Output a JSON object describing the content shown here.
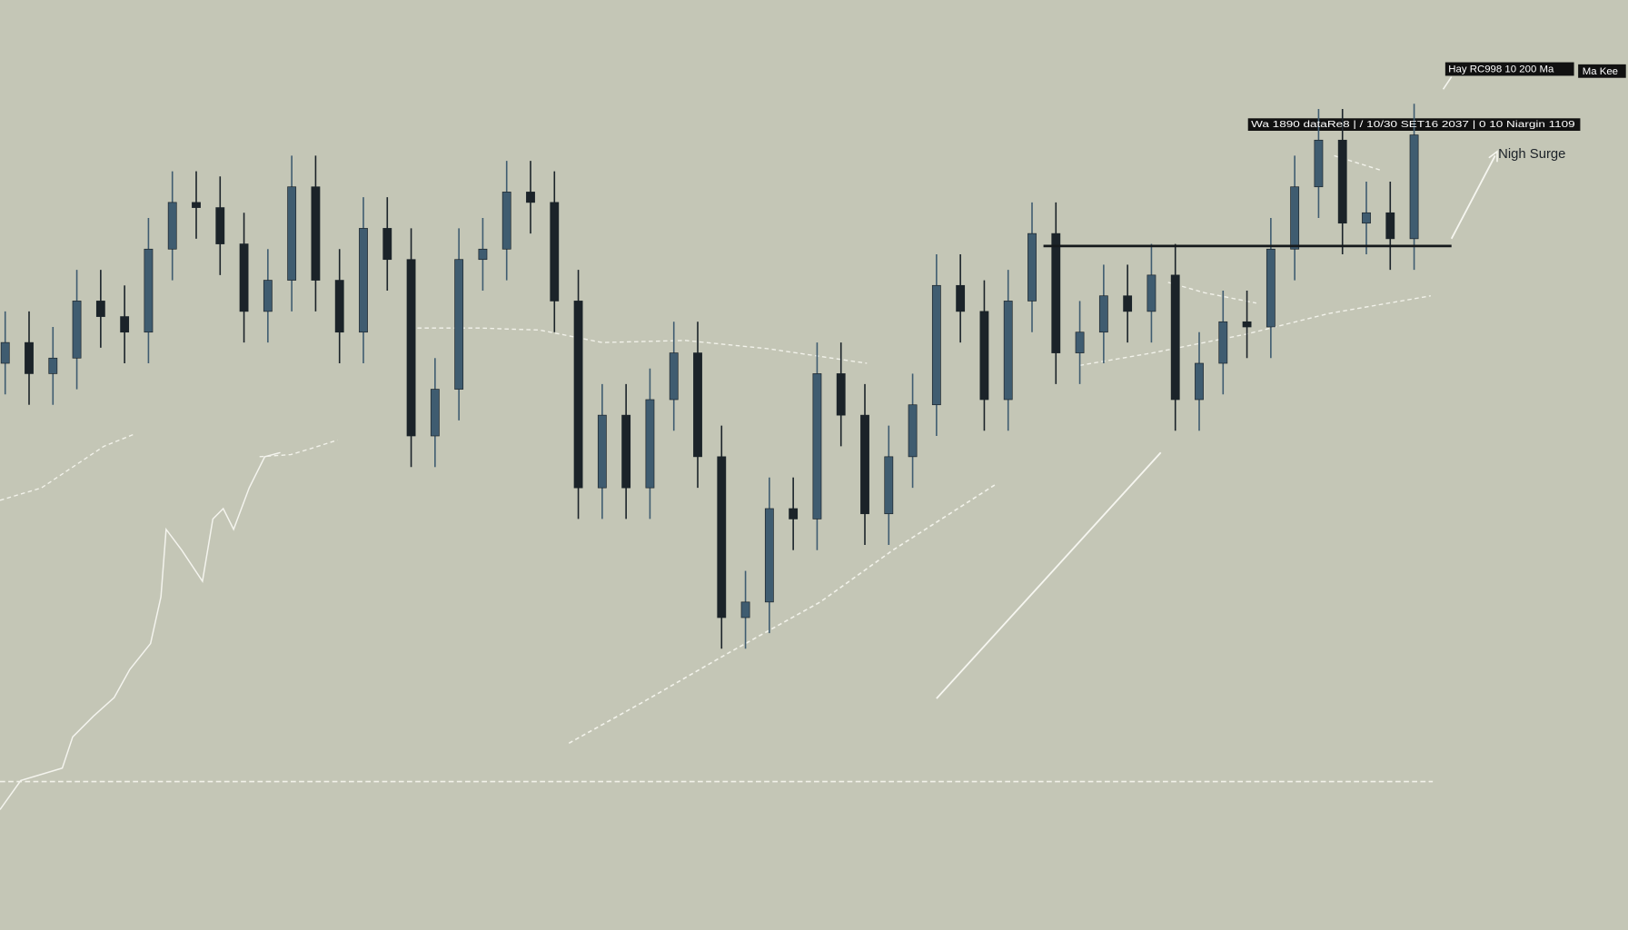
{
  "chart_data": {
    "type": "candlestick",
    "ylim": [
      0,
      896
    ],
    "open": [
      546,
      566,
      536,
      551,
      606,
      591,
      576,
      656,
      701,
      696,
      661,
      596,
      626,
      716,
      626,
      576,
      676,
      646,
      476,
      521,
      646,
      656,
      711,
      701,
      606,
      426,
      496,
      426,
      511,
      556,
      456,
      301,
      316,
      406,
      396,
      536,
      496,
      401,
      456,
      506,
      621,
      596,
      511,
      606,
      671,
      556,
      576,
      611,
      596,
      631,
      511,
      546,
      586,
      581,
      656,
      716,
      761,
      681,
      691,
      666
    ],
    "close": [
      566,
      536,
      551,
      606,
      591,
      576,
      656,
      701,
      696,
      661,
      596,
      626,
      716,
      626,
      576,
      676,
      646,
      476,
      521,
      646,
      656,
      711,
      701,
      606,
      426,
      496,
      426,
      511,
      556,
      456,
      301,
      316,
      406,
      396,
      536,
      496,
      401,
      456,
      506,
      621,
      596,
      511,
      606,
      671,
      556,
      576,
      611,
      596,
      631,
      511,
      546,
      586,
      581,
      656,
      716,
      761,
      681,
      691,
      666,
      766
    ],
    "high": [
      596,
      596,
      581,
      636,
      636,
      621,
      686,
      731,
      731,
      726,
      691,
      656,
      746,
      746,
      656,
      706,
      706,
      676,
      551,
      676,
      686,
      741,
      741,
      731,
      636,
      526,
      526,
      541,
      586,
      586,
      486,
      346,
      436,
      436,
      566,
      566,
      526,
      486,
      536,
      651,
      651,
      626,
      636,
      701,
      701,
      606,
      641,
      641,
      661,
      661,
      576,
      616,
      616,
      686,
      746,
      791,
      791,
      721,
      721,
      796
    ],
    "low": [
      516,
      506,
      506,
      521,
      561,
      546,
      546,
      626,
      666,
      631,
      566,
      566,
      596,
      596,
      546,
      546,
      616,
      446,
      446,
      491,
      616,
      626,
      671,
      576,
      396,
      396,
      396,
      396,
      481,
      426,
      271,
      271,
      286,
      366,
      366,
      466,
      371,
      371,
      426,
      476,
      566,
      481,
      481,
      576,
      526,
      526,
      546,
      566,
      566,
      481,
      481,
      516,
      551,
      551,
      626,
      686,
      651,
      651,
      636,
      636
    ],
    "up_color": "#3f5c70",
    "down_color": "#1b2329",
    "level_lines": [
      659
    ],
    "annotations": [
      "Hay RC998 10 200 Ma",
      "Ma Kee",
      "Wa 1890 dataRe8 | / 10/30 SET16 2037 | 0 10 Niargin 1109",
      "Nigh Surge"
    ]
  }
}
